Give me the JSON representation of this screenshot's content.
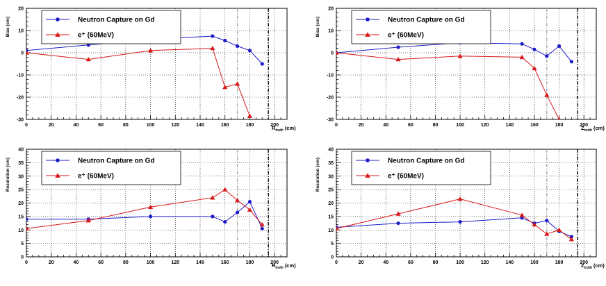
{
  "colors": {
    "neutron": "#1c1cc8",
    "positron": "#d81818",
    "axis": "#000000",
    "grid": "#000000",
    "ref_gray": "#a0a0a0"
  },
  "chart_data": [
    {
      "type": "line",
      "ylabel": "Bias (cm)",
      "xlabel_main": "R",
      "xlabel_sub": "truth",
      "xlabel_unit": "(cm)",
      "xlim": [
        0,
        210
      ],
      "ylim": [
        -30,
        20
      ],
      "xticks": [
        0,
        20,
        40,
        60,
        80,
        100,
        120,
        140,
        160,
        180,
        200
      ],
      "yticks": [
        -30,
        -20,
        -10,
        0,
        10,
        20
      ],
      "grid": true,
      "legend_position": "top-left",
      "ref_lines": [
        {
          "x": 170,
          "style": "dash-dot",
          "color": "gray"
        },
        {
          "x": 195,
          "style": "dash-dot",
          "color": "black"
        }
      ],
      "series": [
        {
          "name": "Neutron Capture on Gd",
          "marker": "circle",
          "color_key": "neutron",
          "points": [
            [
              0,
              1
            ],
            [
              50,
              3.5
            ],
            [
              100,
              6
            ],
            [
              150,
              7.5
            ],
            [
              160,
              5.5
            ],
            [
              170,
              3
            ],
            [
              180,
              1
            ],
            [
              190,
              -5
            ]
          ]
        },
        {
          "name": "e⁺ (60MeV)",
          "marker": "triangle",
          "color_key": "positron",
          "points": [
            [
              0,
              0
            ],
            [
              50,
              -3
            ],
            [
              100,
              1
            ],
            [
              150,
              2
            ],
            [
              160,
              -15.5
            ],
            [
              170,
              -14
            ],
            [
              180,
              -28.5
            ]
          ]
        }
      ]
    },
    {
      "type": "line",
      "ylabel": "Bias (cm)",
      "xlabel_main": "Z",
      "xlabel_sub": "truth",
      "xlabel_unit": "(cm)",
      "xlim": [
        0,
        210
      ],
      "ylim": [
        -30,
        20
      ],
      "xticks": [
        0,
        20,
        40,
        60,
        80,
        100,
        120,
        140,
        160,
        180,
        200
      ],
      "yticks": [
        -30,
        -20,
        -10,
        0,
        10,
        20
      ],
      "grid": true,
      "legend_position": "top-left",
      "ref_lines": [
        {
          "x": 170,
          "style": "dash-dot",
          "color": "gray"
        },
        {
          "x": 195,
          "style": "dash-dot",
          "color": "black"
        }
      ],
      "series": [
        {
          "name": "Neutron Capture on Gd",
          "marker": "circle",
          "color_key": "neutron",
          "points": [
            [
              0,
              0
            ],
            [
              50,
              2.5
            ],
            [
              100,
              4.5
            ],
            [
              150,
              4
            ],
            [
              160,
              1.5
            ],
            [
              170,
              -1.5
            ],
            [
              180,
              3
            ],
            [
              190,
              -4
            ]
          ]
        },
        {
          "name": "e⁺ (60MeV)",
          "marker": "triangle",
          "color_key": "positron",
          "points": [
            [
              0,
              0
            ],
            [
              50,
              -3
            ],
            [
              100,
              -1.5
            ],
            [
              150,
              -2
            ],
            [
              160,
              -7
            ],
            [
              170,
              -19
            ],
            [
              180,
              -30
            ]
          ]
        }
      ]
    },
    {
      "type": "line",
      "ylabel": "Resolution (cm)",
      "xlabel_main": "R",
      "xlabel_sub": "truth",
      "xlabel_unit": "(cm)",
      "xlim": [
        0,
        210
      ],
      "ylim": [
        0,
        40
      ],
      "xticks": [
        0,
        20,
        40,
        60,
        80,
        100,
        120,
        140,
        160,
        180,
        200
      ],
      "yticks": [
        0,
        5,
        10,
        15,
        20,
        25,
        30,
        35,
        40
      ],
      "grid": true,
      "legend_position": "top-left",
      "ref_lines": [
        {
          "x": 170,
          "style": "dash-dot",
          "color": "gray"
        },
        {
          "x": 195,
          "style": "dash-dot",
          "color": "black"
        }
      ],
      "series": [
        {
          "name": "Neutron Capture on Gd",
          "marker": "circle",
          "color_key": "neutron",
          "points": [
            [
              0,
              14
            ],
            [
              50,
              14
            ],
            [
              100,
              15
            ],
            [
              150,
              15
            ],
            [
              160,
              13
            ],
            [
              170,
              16.5
            ],
            [
              180,
              20.5
            ],
            [
              190,
              10.5
            ]
          ]
        },
        {
          "name": "e⁺ (60MeV)",
          "marker": "triangle",
          "color_key": "positron",
          "points": [
            [
              0,
              10.5
            ],
            [
              50,
              13.5
            ],
            [
              100,
              18.5
            ],
            [
              150,
              22
            ],
            [
              160,
              25
            ],
            [
              170,
              21
            ],
            [
              180,
              17.5
            ],
            [
              190,
              12
            ]
          ]
        }
      ]
    },
    {
      "type": "line",
      "ylabel": "Resolution (cm)",
      "xlabel_main": "Z",
      "xlabel_sub": "truth",
      "xlabel_unit": "(cm)",
      "xlim": [
        0,
        210
      ],
      "ylim": [
        0,
        40
      ],
      "xticks": [
        0,
        20,
        40,
        60,
        80,
        100,
        120,
        140,
        160,
        180,
        200
      ],
      "yticks": [
        0,
        5,
        10,
        15,
        20,
        25,
        30,
        35,
        40
      ],
      "grid": true,
      "legend_position": "top-left",
      "ref_lines": [
        {
          "x": 170,
          "style": "dash-dot",
          "color": "gray"
        },
        {
          "x": 195,
          "style": "dash-dot",
          "color": "black"
        }
      ],
      "series": [
        {
          "name": "Neutron Capture on Gd",
          "marker": "circle",
          "color_key": "neutron",
          "points": [
            [
              0,
              11
            ],
            [
              50,
              12.5
            ],
            [
              100,
              13
            ],
            [
              150,
              14.5
            ],
            [
              160,
              12.5
            ],
            [
              170,
              13.5
            ],
            [
              180,
              9.5
            ],
            [
              190,
              7.5
            ]
          ]
        },
        {
          "name": "e⁺ (60MeV)",
          "marker": "triangle",
          "color_key": "positron",
          "points": [
            [
              0,
              10.5
            ],
            [
              50,
              16
            ],
            [
              100,
              21.5
            ],
            [
              150,
              15.5
            ],
            [
              160,
              12
            ],
            [
              170,
              8.5
            ],
            [
              180,
              10
            ],
            [
              190,
              6.5
            ]
          ]
        }
      ]
    }
  ]
}
